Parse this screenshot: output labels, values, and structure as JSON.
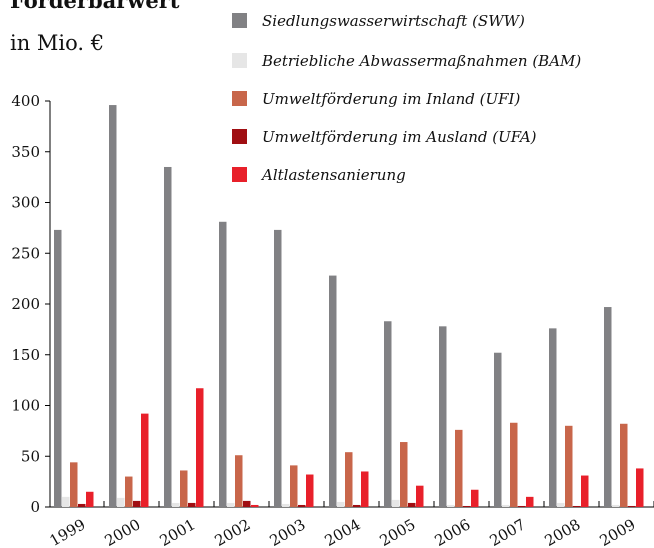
{
  "chart_data": {
    "type": "bar",
    "title": "Förderbarwert",
    "subtitle": "in Mio. €",
    "categories": [
      "1999",
      "2000",
      "2001",
      "2002",
      "2003",
      "2004",
      "2005",
      "2006",
      "2007",
      "2008",
      "2009"
    ],
    "series": [
      {
        "name": "Siedlungswasserwirtschaft (SWW)",
        "color": "#818184",
        "values": [
          273,
          396,
          335,
          281,
          273,
          228,
          183,
          178,
          152,
          176,
          197
        ]
      },
      {
        "name": "Betriebliche Abwassermaßnahmen (BAM)",
        "color": "#e6e6e6",
        "values": [
          10,
          9,
          4,
          4,
          3,
          5,
          7,
          2,
          2,
          4,
          2
        ]
      },
      {
        "name": "Umweltförderung im Inland (UFI)",
        "color": "#c8664a",
        "values": [
          44,
          30,
          36,
          51,
          41,
          54,
          64,
          76,
          83,
          80,
          82
        ]
      },
      {
        "name": "Umweltförderung im Ausland (UFA)",
        "color": "#a00e12",
        "values": [
          3,
          6,
          4,
          6,
          2,
          2,
          4,
          1,
          1,
          1,
          1
        ]
      },
      {
        "name": "Altlastensanierung",
        "color": "#e8202a",
        "values": [
          15,
          92,
          117,
          2,
          32,
          35,
          21,
          17,
          10,
          31,
          38
        ]
      }
    ],
    "ylim": [
      0,
      400
    ],
    "yticks": [
      0,
      50,
      100,
      150,
      200,
      250,
      300,
      350,
      400
    ],
    "grid": false
  }
}
